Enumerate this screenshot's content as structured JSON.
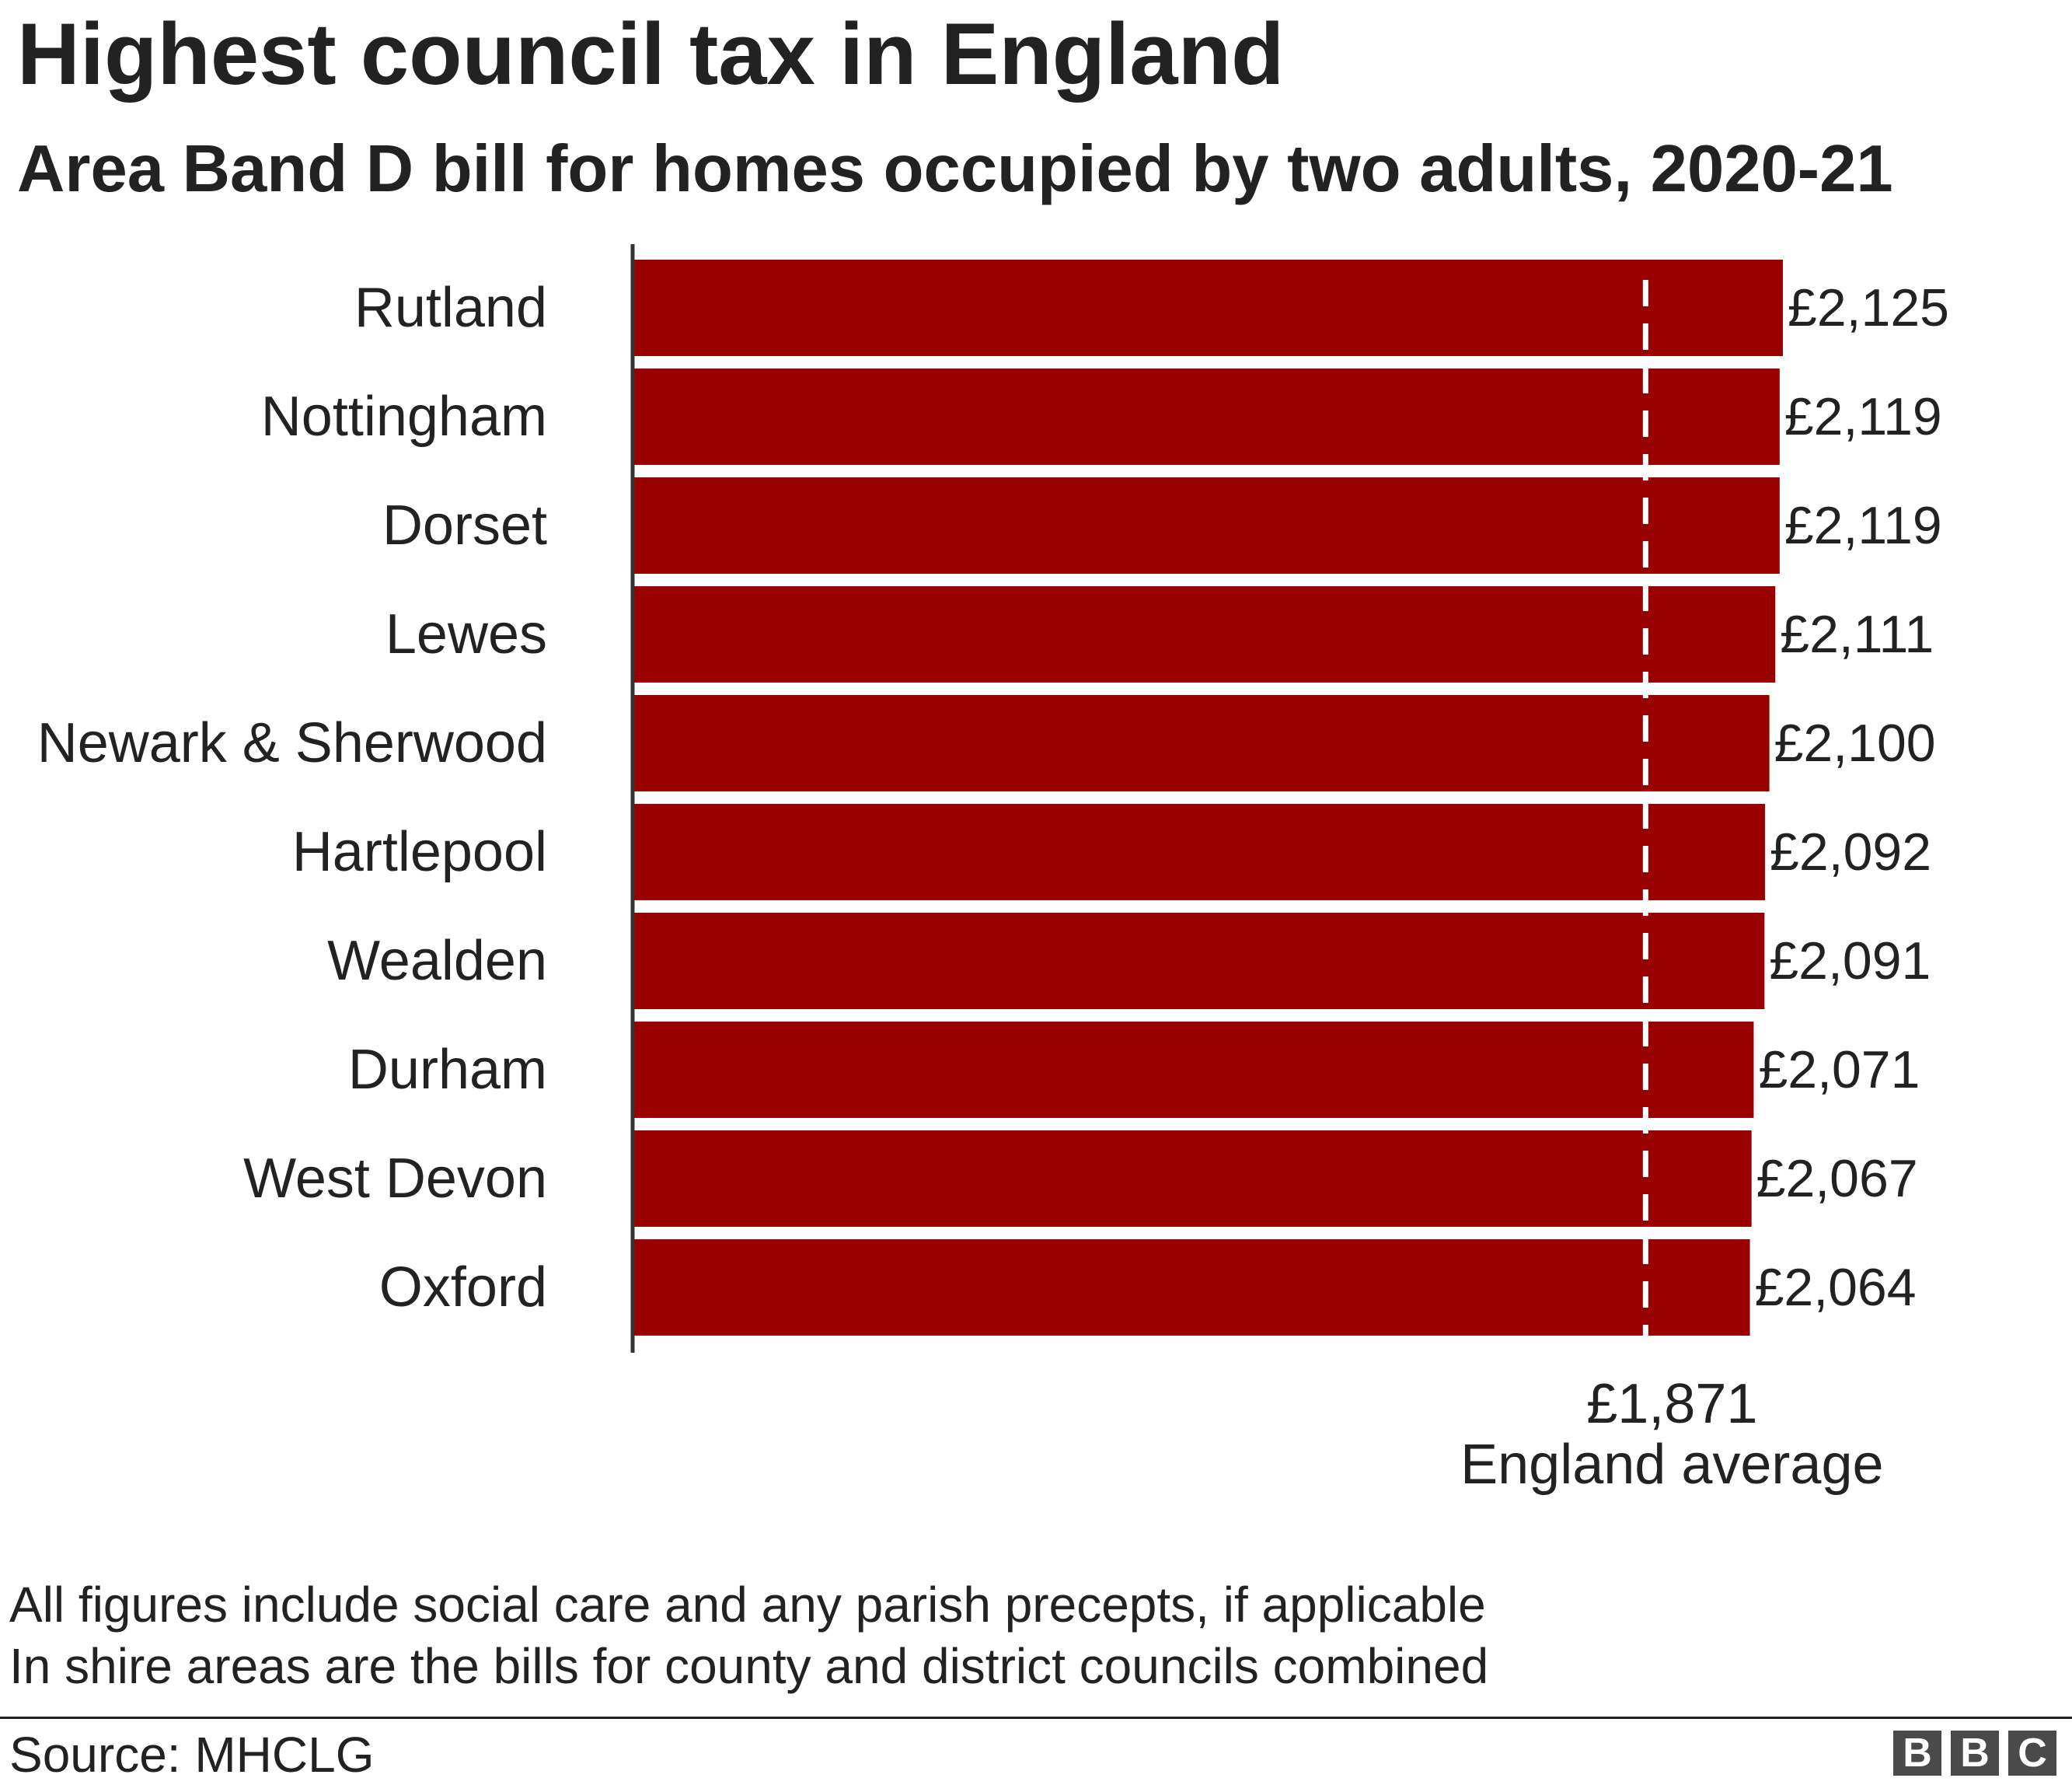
{
  "chart_data": {
    "type": "bar",
    "orientation": "horizontal",
    "title": "Highest council tax in England",
    "subtitle": "Area Band D bill for homes occupied by two adults, 2020-21",
    "categories": [
      "Rutland",
      "Nottingham",
      "Dorset",
      "Lewes",
      "Newark & Sherwood",
      "Hartlepool",
      "Wealden",
      "Durham",
      "West Devon",
      "Oxford"
    ],
    "values": [
      2125,
      2119,
      2119,
      2111,
      2100,
      2092,
      2091,
      2071,
      2067,
      2064
    ],
    "value_labels": [
      "£2,125",
      "£2,119",
      "£2,119",
      "£2,111",
      "£2,100",
      "£2,092",
      "£2,091",
      "£2,071",
      "£2,067",
      "£2,064"
    ],
    "xlim": [
      0,
      2125
    ],
    "grid": false,
    "bar_color": "#990000",
    "reference_line": {
      "value": 1871,
      "value_label": "£1,871",
      "label": "England average",
      "style": "dashed",
      "color": "#ffffff"
    }
  },
  "notes": [
    "All figures include social care and any parish precepts, if applicable",
    "In shire areas are the bills for county and district councils combined"
  ],
  "source": "Source: MHCLG",
  "logo": [
    "B",
    "B",
    "C"
  ]
}
